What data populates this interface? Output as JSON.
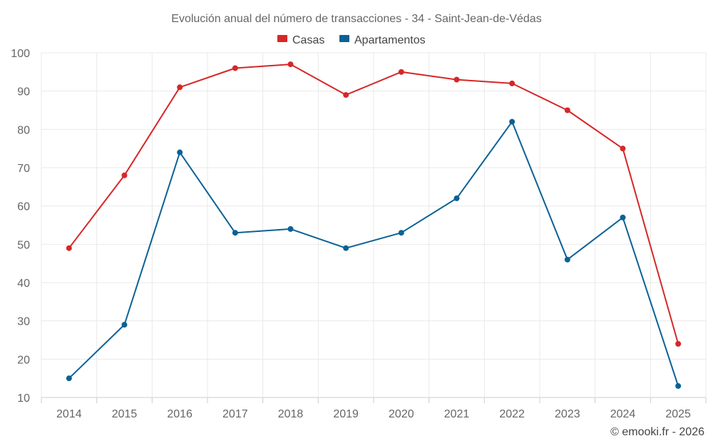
{
  "chart_data": {
    "type": "line",
    "title": "Evolución anual del número de transacciones - 34 - Saint-Jean-de-Védas",
    "categories": [
      "2014",
      "2015",
      "2016",
      "2017",
      "2018",
      "2019",
      "2020",
      "2021",
      "2022",
      "2023",
      "2024",
      "2025"
    ],
    "series": [
      {
        "name": "Casas",
        "color": "#d62728",
        "values": [
          49,
          68,
          91,
          96,
          97,
          89,
          95,
          93,
          92,
          85,
          75,
          24
        ]
      },
      {
        "name": "Apartamentos",
        "color": "#0b6196",
        "values": [
          15,
          29,
          74,
          53,
          54,
          49,
          53,
          62,
          82,
          46,
          57,
          13
        ]
      }
    ],
    "ylim": [
      10,
      100
    ],
    "yticks": [
      10,
      20,
      30,
      40,
      50,
      60,
      70,
      80,
      90,
      100
    ],
    "ytick_labels": [
      "10",
      "20",
      "30",
      "40",
      "50",
      "60",
      "70",
      "80",
      "90",
      "100"
    ],
    "xlabel": "",
    "ylabel": "",
    "grid": true,
    "legend": "top-center"
  },
  "credit": "© emooki.fr - 2026"
}
